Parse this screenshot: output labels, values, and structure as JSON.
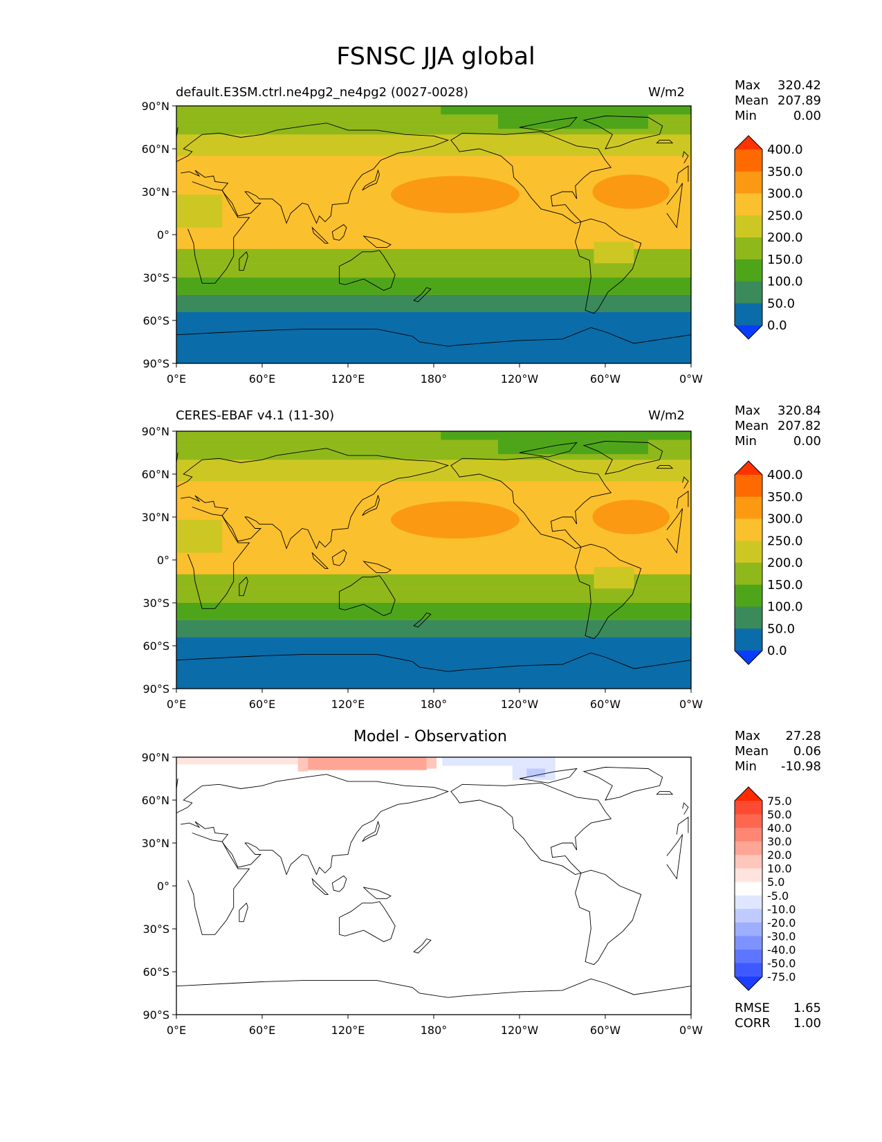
{
  "figure": {
    "title": "FSNSC JJA global"
  },
  "chart_data": [
    {
      "type": "heatmap",
      "title_left": "default.E3SM.ctrl.ne4pg2_ne4pg2 (0027-0028)",
      "title_right": "W/m2",
      "x_ticks": [
        "0°E",
        "60°E",
        "120°E",
        "180°",
        "120°W",
        "60°W",
        "0°W"
      ],
      "y_ticks": [
        "90°N",
        "60°N",
        "30°N",
        "0°",
        "30°S",
        "60°S",
        "90°S"
      ],
      "xlim": [
        0,
        360
      ],
      "ylim": [
        -90,
        90
      ],
      "stats": [
        {
          "label": "Max",
          "value": "320.42"
        },
        {
          "label": "Mean",
          "value": "207.89"
        },
        {
          "label": "Min",
          "value": "0.00"
        }
      ],
      "colorbar": {
        "labels": [
          "400.0",
          "350.0",
          "300.0",
          "250.0",
          "200.0",
          "150.0",
          "100.0",
          "50.0",
          "0.0"
        ],
        "colors": [
          "#ff3300",
          "#ff6a00",
          "#fb9a12",
          "#fbc02d",
          "#cdc724",
          "#8fb81a",
          "#4ea51a",
          "#3a8a5c",
          "#0a6ca8",
          "#0a3cff"
        ]
      },
      "bands": [
        {
          "lat": [
            -90,
            -82
          ],
          "value": 0
        },
        {
          "lat": [
            -82,
            -54
          ],
          "value": 25
        },
        {
          "lat": [
            -54,
            -42
          ],
          "value": 75
        },
        {
          "lat": [
            -42,
            -30
          ],
          "value": 125
        },
        {
          "lat": [
            -30,
            -20
          ],
          "value": 150
        },
        {
          "lat": [
            -20,
            -10
          ],
          "value": 175
        },
        {
          "lat": [
            -10,
            55
          ],
          "value": 275
        },
        {
          "lat": [
            55,
            70
          ],
          "value": 225
        },
        {
          "lat": [
            70,
            80
          ],
          "value": 175
        },
        {
          "lat": [
            80,
            90
          ],
          "value": 150
        }
      ]
    },
    {
      "type": "heatmap",
      "title_left": "CERES-EBAF v4.1 (11-30)",
      "title_right": "W/m2",
      "x_ticks": [
        "0°E",
        "60°E",
        "120°E",
        "180°",
        "120°W",
        "60°W",
        "0°W"
      ],
      "y_ticks": [
        "90°N",
        "60°N",
        "30°N",
        "0°",
        "30°S",
        "60°S",
        "90°S"
      ],
      "xlim": [
        0,
        360
      ],
      "ylim": [
        -90,
        90
      ],
      "stats": [
        {
          "label": "Max",
          "value": "320.84"
        },
        {
          "label": "Mean",
          "value": "207.82"
        },
        {
          "label": "Min",
          "value": "0.00"
        }
      ],
      "colorbar": {
        "labels": [
          "400.0",
          "350.0",
          "300.0",
          "250.0",
          "200.0",
          "150.0",
          "100.0",
          "50.0",
          "0.0"
        ],
        "colors": [
          "#ff3300",
          "#ff6a00",
          "#fb9a12",
          "#fbc02d",
          "#cdc724",
          "#8fb81a",
          "#4ea51a",
          "#3a8a5c",
          "#0a6ca8",
          "#0a3cff"
        ]
      },
      "bands": [
        {
          "lat": [
            -90,
            -82
          ],
          "value": 0
        },
        {
          "lat": [
            -82,
            -54
          ],
          "value": 25
        },
        {
          "lat": [
            -54,
            -42
          ],
          "value": 75
        },
        {
          "lat": [
            -42,
            -30
          ],
          "value": 125
        },
        {
          "lat": [
            -30,
            -20
          ],
          "value": 150
        },
        {
          "lat": [
            -20,
            -10
          ],
          "value": 175
        },
        {
          "lat": [
            -10,
            55
          ],
          "value": 275
        },
        {
          "lat": [
            55,
            70
          ],
          "value": 225
        },
        {
          "lat": [
            70,
            80
          ],
          "value": 175
        },
        {
          "lat": [
            80,
            90
          ],
          "value": 150
        }
      ]
    },
    {
      "type": "heatmap",
      "title_center": "Model - Observation",
      "x_ticks": [
        "0°E",
        "60°E",
        "120°E",
        "180°",
        "120°W",
        "60°W",
        "0°W"
      ],
      "y_ticks": [
        "90°N",
        "60°N",
        "30°N",
        "0°",
        "30°S",
        "60°S",
        "90°S"
      ],
      "xlim": [
        0,
        360
      ],
      "ylim": [
        -90,
        90
      ],
      "stats": [
        {
          "label": "Max",
          "value": "27.28"
        },
        {
          "label": "Mean",
          "value": "0.06"
        },
        {
          "label": "Min",
          "value": "-10.98"
        }
      ],
      "colorbar": {
        "labels": [
          "75.0",
          "50.0",
          "40.0",
          "30.0",
          "20.0",
          "10.0",
          "5.0",
          "-5.0",
          "-10.0",
          "-20.0",
          "-30.0",
          "-40.0",
          "-50.0",
          "-75.0"
        ],
        "colors": [
          "#ff2a00",
          "#ff4a33",
          "#ff6650",
          "#ff8672",
          "#ffa595",
          "#ffc6bb",
          "#ffe3dd",
          "#ffffff",
          "#dfe6ff",
          "#bfcaff",
          "#9eaeff",
          "#7e92ff",
          "#5e76ff",
          "#3e5aff",
          "#1e3eff"
        ]
      },
      "regions": [
        {
          "lon": [
            0,
            85
          ],
          "lat": [
            85,
            90
          ],
          "value": 7
        },
        {
          "lon": [
            85,
            92
          ],
          "lat": [
            80,
            90
          ],
          "value": 12
        },
        {
          "lon": [
            92,
            175
          ],
          "lat": [
            81,
            90
          ],
          "value": 25
        },
        {
          "lon": [
            175,
            182
          ],
          "lat": [
            82,
            90
          ],
          "value": 12
        },
        {
          "lon": [
            186,
            265
          ],
          "lat": [
            84,
            90
          ],
          "value": -7
        },
        {
          "lon": [
            235,
            265
          ],
          "lat": [
            74,
            84
          ],
          "value": -7
        },
        {
          "lon": [
            245,
            258
          ],
          "lat": [
            76,
            82
          ],
          "value": -12
        }
      ],
      "error_stats": [
        {
          "label": "RMSE",
          "value": "1.65"
        },
        {
          "label": "CORR",
          "value": "1.00"
        }
      ]
    }
  ]
}
